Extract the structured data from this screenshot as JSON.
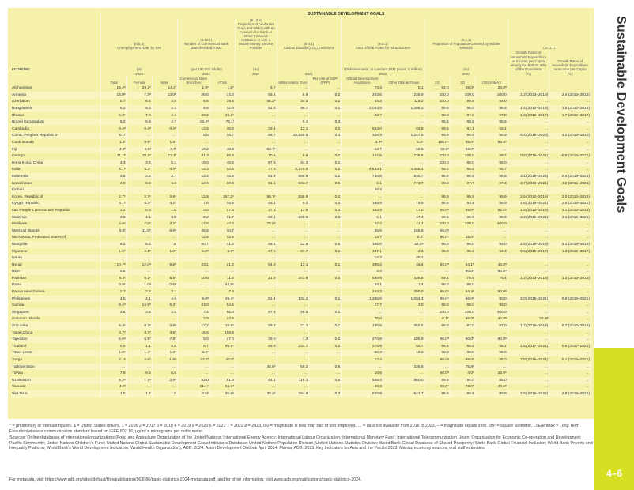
{
  "page": {
    "super_title": "SUSTAINABLE DEVELOPMENT GOALS",
    "side_title": "Sustainable Development Goals",
    "page_number": "4–6"
  },
  "style": {
    "table_bg": "#f5f1a8",
    "band_bg": "#d7df23",
    "text_color": "#333333",
    "header_fontsize": 4.4,
    "body_fontsize": 4.8
  },
  "headers": {
    "economy_label": "ECONOMY",
    "groups": [
      {
        "ref": "(8.5.2)",
        "title": "Unemployment Rate, by Sex",
        "unit": "(%)",
        "year": "2022",
        "sub": [
          "Total",
          "Female",
          "Male"
        ]
      },
      {
        "ref": "(8.10.1)",
        "title": "Number of Commercial Bank Branches and ATMs",
        "unit": "(per 100,000 adults)",
        "year": "2022",
        "sub": [
          "Commercial Bank Branches",
          "ATMs"
        ]
      },
      {
        "ref": "(8.10.2)",
        "title": "Proportion of Adults (15 Years and Older) with an Account at a Bank or Other Financial Institution or with a Mobile Money Service Provider",
        "unit": "(%)",
        "year": "2021",
        "sub": [
          ""
        ]
      },
      {
        "ref": "(9.4.1)",
        "title": "Carbon Dioxide (CO₂) Emissions",
        "unit": "",
        "year": "2021",
        "sub": [
          "Million Metric Tons",
          "Per Unit of GDP (PPP)"
        ]
      },
      {
        "ref": "(9.a.1)",
        "title": "Total Official Flows for Infrastructure",
        "unit": "(Disbursements, at constant 2021 prices, $ million)",
        "year": "2022",
        "sub": [
          "Official Development Assistance",
          "Other Official Flows"
        ]
      },
      {
        "ref": "(9.c.1)",
        "title": "Proportion of Population Covered by Mobile Network",
        "unit": "(%)",
        "year": "2022",
        "sub": [
          "2G",
          "3G",
          "LTE/ WiMAX"
        ]
      },
      {
        "ref": "(10.1.1)",
        "title": "",
        "unit": "",
        "year": "",
        "sub": [
          "Growth Rates of Household Expenditure or Income per Capita among the Bottom 40% of the Population",
          "Growth Rates of Household Expenditure or Income per Capita"
        ]
      }
    ],
    "unit_pct": "(%)",
    "unit_pct2": "(%)"
  },
  "rows": [
    {
      "e": "Afghanistan",
      "c": [
        "15.4ᵃ",
        "29.2ᶜ",
        "14.4ᶠ",
        "1.9ᶜ",
        "1.6ᶜ",
        "9.7",
        "…",
        "…",
        "73.3",
        "0.1",
        "92.0",
        "58.0ᵃ",
        "26.0ᵃ",
        "",
        ""
      ]
    },
    {
      "e": "Armenia",
      "c": [
        "13.0ᵃ",
        "7.3ᵃ",
        "13.0ᵃ",
        "26.0",
        "74.0",
        "55.4",
        "6.9",
        "0.2",
        "202.6",
        "235.9",
        "100.0",
        "100.0",
        "100.0",
        "1.3  (2013–2018)",
        "2.4  (2013–2018)"
      ]
    },
    {
      "e": "Azerbaijan",
      "c": [
        "5.7",
        "6.5",
        "4.8",
        "6.6",
        "39.4",
        "46.3ᵇ",
        "34.0",
        "0.2",
        "64.3",
        "115.2",
        "100.0",
        "99.8",
        "94.0",
        "…",
        "…"
      ]
    },
    {
      "e": "Bangladesh",
      "c": [
        "5.2",
        "8.3",
        "4.3",
        "8.8",
        "12.6",
        "52.8",
        "98.7",
        "0.1",
        "3,083.5",
        "1,298.3",
        "99.6",
        "98.5",
        "98.5",
        "1.4  (2010–2016)",
        "1.5  (2010–2016)"
      ]
    },
    {
      "e": "Bhutan",
      "c": [
        "5.9ᶜ",
        "7.9",
        "4.4",
        "20.2",
        "45.2ᶜ",
        "…",
        "…",
        "…",
        "34.7",
        "…",
        "98.0",
        "97.0",
        "97.0",
        "1.6  (2012–2017)",
        "1.7  (2012–2017)"
      ]
    },
    {
      "e": "Brunei Darussalam",
      "c": [
        "5.2",
        "5.9",
        "4.7",
        "16.2ᵃ",
        "73.1ᶠ",
        "…",
        "9.1",
        "0.3",
        "…",
        "…",
        "98.6",
        "98.6",
        "98.6",
        "…",
        "…"
      ]
    },
    {
      "e": "Cambodia",
      "c": [
        "0.4ᵃ",
        "0.4ᵃ",
        "0.4ᵃ",
        "12.6",
        "38.0",
        "33.4",
        "13.1",
        "0.2",
        "554.0",
        "93.8",
        "99.6",
        "92.1",
        "92.1",
        "…",
        "…"
      ]
    },
    {
      "e": "China, People's Republic of",
      "c": [
        "5.1ᶜ",
        "…",
        "…",
        "8.8",
        "76.7",
        "88.7",
        "10,648.5",
        "0.4",
        "328.3",
        "1,247.9",
        "99.9",
        "99.9",
        "99.9",
        "5.4  (2015–2020)",
        "4.0  (2015–2020)"
      ]
    },
    {
      "e": "Cook Islands",
      "c": [
        "1.3ᶠ",
        "0.9ᶜ",
        "1.6ᶜ",
        "…",
        "…",
        "…",
        "…",
        "…",
        "4.9ᵃ",
        "5.4ᶜ",
        "100.0ᶜ",
        "55.0ᶜ",
        "55.0ᶜ",
        "…",
        "…"
      ]
    },
    {
      "e": "Fiji",
      "c": [
        "4.3ᶠ",
        "5.5ᶠ",
        "3.7ᶠ",
        "10.2",
        "48.8",
        "62.7ᶜ",
        "…",
        "…",
        "14.7",
        "52.5",
        "98.0ᶠ",
        "96.0ᵃ",
        "…",
        "…",
        "…"
      ]
    },
    {
      "e": "Georgia",
      "c": [
        "11.7ᵃ",
        "10.2ᶜ",
        "13.1ᶠ",
        "31.3",
        "99.3",
        "70.5",
        "9.9",
        "0.2",
        "192.5",
        "736.6",
        "100.0",
        "100.0",
        "99.7",
        "0.2  (2016–2021)",
        "–0.9  (2016–2021)"
      ]
    },
    {
      "e": "Hong Kong, China",
      "c": [
        "4.3",
        "3.5",
        "5.1",
        "19.0",
        "49.5",
        "97.8",
        "34.3",
        "0.1",
        "…",
        "…",
        "100.0",
        "99.0",
        "99.0",
        "…",
        "…"
      ]
    },
    {
      "e": "India",
      "c": [
        "4.1ᵃ",
        "3.3ᶜ",
        "4.4ᵃ",
        "14.3",
        "24.6",
        "77.5",
        "2,279.0",
        "0.2",
        "4,634.1",
        "4,068.4",
        "99.2",
        "98.8",
        "98.7",
        "…",
        "…"
      ]
    },
    {
      "e": "Indonesia",
      "c": [
        "3.5",
        "3.2",
        "3.7",
        "12.4",
        "45.8",
        "51.8",
        "556.6",
        "0.2",
        "738.6",
        "935.7",
        "98.8",
        "96.5",
        "96.5",
        "3.1  (2018–2023)",
        "2.3  (2018–2023)"
      ]
    },
    {
      "e": "Kazakhstan",
      "c": [
        "4.9",
        "5.5",
        "4.3",
        "12.4",
        "89.8",
        "81.1",
        "223.7",
        "0.5",
        "5.1",
        "773.7",
        "99.0",
        "97.7",
        "87.3",
        "3.7  (2016–2021)",
        "4.2  (2016–2021)"
      ]
    },
    {
      "e": "Kiribati",
      "c": [
        "…",
        "…",
        "…",
        "…",
        "…",
        "…",
        "…",
        "…",
        "26.4",
        "…",
        "…",
        "…",
        "…",
        "…",
        "…"
      ]
    },
    {
      "e": "Korea, Republic of",
      "c": [
        "2.7ᶜ",
        "2.7ᶜ",
        "2.6ᶜ",
        "12.9",
        "257.2ᶜ",
        "98.7ᶜ",
        "558.6",
        "0.2",
        "…",
        "…",
        "99.9",
        "99.9",
        "99.9",
        "2.5  (2012–2016)",
        "2.3  (2012–2016)"
      ]
    },
    {
      "e": "Kyrgyz Republic",
      "c": [
        "4.1ᶜ",
        "4.3ᶜ",
        "4.1ᶜ",
        "7.6",
        "45.8",
        "45.1",
        "9.2",
        "0.3",
        "166.9",
        "79.9",
        "98.8",
        "93.8",
        "86.9",
        "1.6  (2016–2021)",
        "2.5  (2016–2021)"
      ]
    },
    {
      "e": "Lao People's Democratic Republic",
      "c": [
        "1.2",
        "0.9",
        "1.5",
        "3.0",
        "27.5",
        "37.3",
        "17.9",
        "0.3",
        "163.3",
        "17.0",
        "95.0ᵃ",
        "85.0ᵃ",
        "52.0ᵃ",
        "1.9  (2012–2018)",
        "3.1  (2012–2018)"
      ]
    },
    {
      "e": "Malaysia",
      "c": [
        "3.9",
        "4.1",
        "3.8",
        "8.2",
        "51.7",
        "88.4",
        "225.9",
        "0.3",
        "5.1",
        "47.4",
        "98.6",
        "96.9",
        "96.9",
        "3.2  (2015–2021)",
        "3.1  (2015–2021)"
      ]
    },
    {
      "e": "Maldives",
      "c": [
        "4.6ᶜ",
        "7.0ᶜ",
        "3.1ᶜ",
        "14.6",
        "44.4",
        "79.0ᶜ",
        "…",
        "…",
        "52.7",
        "11.4",
        "100.0",
        "100.0",
        "100.0",
        "…",
        "…"
      ]
    },
    {
      "e": "Marshall Islands",
      "c": [
        "9.8ᶠ",
        "11.5ᵇ",
        "8.9ᵃ",
        "28.5",
        "10.7",
        "…",
        "…",
        "…",
        "26.8",
        "166.8",
        "65.0ᵃ",
        "…",
        "…",
        "…",
        "…"
      ]
    },
    {
      "e": "Micronesia, Federated States of",
      "c": [
        "…",
        "…",
        "…",
        "12.6",
        "12.6",
        "…",
        "…",
        "…",
        "12.7",
        "0.2ᶠ",
        "80.0ᶜ",
        "15.0ᶜ",
        "…",
        "…",
        "…"
      ]
    },
    {
      "e": "Mongolia",
      "c": [
        "6.2",
        "5.4",
        "7.0",
        "60.7",
        "41.2",
        "98.5",
        "22.6",
        "0.6",
        "165.0",
        "82.0ᵃ",
        "99.0",
        "99.0",
        "99.0",
        "2.5  (2016–2018)",
        "3.1  (2016–2018)"
      ]
    },
    {
      "e": "Myanmar",
      "c": [
        "1.5ᵇ",
        "2.1ᶜ",
        "1.0ᵃ",
        "5.6ᵇ",
        "6.9ᵃ",
        "47.8",
        "27.7",
        "0.1",
        "337.1",
        "2.4",
        "96.0",
        "95.4",
        "94.3",
        "9.5  (2015–2017)",
        "1.3  (2015–2017)"
      ]
    },
    {
      "e": "Nauru",
      "c": [
        "…",
        "…",
        "…",
        "…",
        "…",
        "…",
        "…",
        "…",
        "12.2",
        "30.1",
        "…",
        "…",
        "…",
        "…",
        "…"
      ]
    },
    {
      "e": "Nepal",
      "c": [
        "10.7ᵃ",
        "12.0ᵃ",
        "9.8ᵃ",
        "23.1",
        "21.2",
        "54.0",
        "13.1",
        "0.1",
        "386.2",
        "46.4",
        "93.0ᵃ",
        "54.1ᵃ",
        "45.0ᵃ",
        "…",
        "…"
      ]
    },
    {
      "e": "Niue",
      "c": [
        "0.6",
        "…",
        "…",
        "…",
        "…",
        "…",
        "…",
        "…",
        "4.4",
        "…",
        "…",
        "60.0ᵃ",
        "60.0ᵃ",
        "…",
        "…"
      ]
    },
    {
      "e": "Pakistan",
      "c": [
        "6.3ᶠ",
        "9.2ᶜ",
        "5.5ᶜ",
        "10.8",
        "11.2",
        "21.0",
        "201.6",
        "0.2",
        "589.9",
        "436.8",
        "89.4",
        "79.9",
        "76.4",
        "1.3  (2013–2018)",
        "1.3  (2013–2018)"
      ]
    },
    {
      "e": "Palau",
      "c": [
        "0.8ᶜ",
        "1.0ᵃ",
        "0.6ᵃ",
        "…",
        "44.9ᶜ",
        "…",
        "…",
        "…",
        "34.1",
        "1.4",
        "98.0",
        "89.0",
        "…",
        "…",
        "…"
      ]
    },
    {
      "e": "Papua New Guinea",
      "c": [
        "2.7",
        "2.2",
        "3.1",
        "…",
        "7.4",
        "…",
        "…",
        "…",
        "244.3",
        "390.0",
        "89.0ᶜ",
        "64.4ᵃ",
        "50.0ᵃ",
        "…",
        "…"
      ]
    },
    {
      "e": "Philippines",
      "c": [
        "4.5",
        "4.1",
        "4.9",
        "9.0ᵃ",
        "29.4ᶜ",
        "51.4",
        "132.2",
        "0.1",
        "1,395.6",
        "1,094.3",
        "99.0ᶜ",
        "96.0ᵃ",
        "80.0",
        "3.0  (2015–2021)",
        "0.8  (2015–2021)"
      ]
    },
    {
      "e": "Samoa",
      "c": [
        "9.4ᵇ",
        "14.5ᵇ",
        "6.3ᶜ",
        "23.0",
        "54.6",
        "…",
        "…",
        "…",
        "27.7",
        "3.0",
        "99.0",
        "99.0",
        "99.0",
        "…",
        "…"
      ]
    },
    {
      "e": "Singapore",
      "c": [
        "3.6",
        "3.8",
        "3.5",
        "7.4",
        "55.0",
        "97.6",
        "45.5",
        "0.1",
        "…",
        "…",
        "100.0",
        "100.0",
        "100.0",
        "…",
        "…"
      ]
    },
    {
      "e": "Solomon Islands",
      "c": [
        "…",
        "…",
        "…",
        "3.9",
        "13.6",
        "…",
        "…",
        "…",
        "70.0",
        "…",
        "0.1ᶜ",
        "95.0ᵃ",
        "45.0ᵃ",
        "25.0ᵃ",
        "…"
      ]
    },
    {
      "e": "Sri Lanka",
      "c": [
        "5.4ᶜ",
        "8.2ᶜ",
        "3.9ᵃ",
        "17.2",
        "18.9ᶜ",
        "89.3",
        "21.1",
        "0.1",
        "135.8",
        "352.5",
        "99.0",
        "97.0",
        "97.0",
        "1.7  (2016–2019)",
        "0.7  (2016–2019)"
      ]
    },
    {
      "e": "Taipei,China",
      "c": [
        "3.7ᶜ",
        "3.7ᶜ",
        "3.6ᶜ",
        "16.6",
        "159.8",
        "…",
        "…",
        "…",
        "…",
        "…",
        "…",
        "…",
        "…",
        "…",
        "…"
      ]
    },
    {
      "e": "Tajikistan",
      "c": [
        "6.9ᵃ",
        "5.5ᶜ",
        "7.9ᶜ",
        "5.0",
        "27.0",
        "39.0",
        "7.4",
        "0.2",
        "274.8",
        "105.9",
        "90.0ᵃ",
        "90.0ᵃ",
        "80.0ᵃ",
        "…",
        "…"
      ]
    },
    {
      "e": "Thailand",
      "c": [
        "0.9",
        "1.1",
        "0.8",
        "9.7",
        "99.9ᶜ",
        "95.6",
        "234.7",
        "0.2",
        "275.8",
        "50.7",
        "98.6",
        "98.8",
        "98.1",
        "1.5  (2017–2021)",
        "0.6  (2017–2021)"
      ]
    },
    {
      "e": "Timor-Leste",
      "c": [
        "1.5ᶜ",
        "1.4ᶜ",
        "1.6ᶜ",
        "3.4ᶜ",
        "…",
        "…",
        "…",
        "…",
        "60.3",
        "10.2",
        "99.0",
        "99.0",
        "98.0",
        "…",
        "…"
      ]
    },
    {
      "e": "Tonga",
      "c": [
        "2.1ᵃ",
        "2.5ᶜ",
        "1.8ᵃ",
        "33.0ᶠ",
        "40.5ᶠ",
        "…",
        "…",
        "…",
        "13.4",
        "…",
        "99.0ᵃ",
        "99.0ᵃ",
        "96.0",
        "7.8  (2015–2021)",
        "5.1  (2015–2021)"
      ]
    },
    {
      "e": "Turkmenistan",
      "c": [
        "…",
        "…",
        "…",
        "…",
        "…",
        "40.6ᶜ",
        "59.2",
        "0.6",
        "…",
        "336.8",
        "…",
        "75.8ᶜ",
        "…",
        "…",
        "…"
      ]
    },
    {
      "e": "Tuvalu",
      "c": [
        "7.9",
        "9.5",
        "6.8",
        "…",
        "…",
        "…",
        "…",
        "…",
        "10.6",
        "…",
        "80.0ᵃ",
        "4.0ᵃ",
        "25.0ᶜ",
        "…",
        "…"
      ]
    },
    {
      "e": "Uzbekistan",
      "c": [
        "5.3ᵃ",
        "7.7ᵃ",
        "3.9ᵃ",
        "52.0",
        "81.9",
        "44.1",
        "116.1",
        "0.4",
        "548.4",
        "960.0",
        "99.5",
        "94.0",
        "85.0",
        "…",
        "…"
      ]
    },
    {
      "e": "Vanuatu",
      "c": [
        "4.0ᶠ",
        "…",
        "…",
        "21.1ᶜ",
        "56.3ᵃ",
        "…",
        "…",
        "…",
        "48.3",
        "–",
        "98.0ᶜ",
        "70.0ᵃ",
        "40.0ᵃ",
        "…",
        "…"
      ]
    },
    {
      "e": "Viet Nam",
      "c": [
        "1.5",
        "1.4",
        "1.6",
        "3.5ᵇ",
        "25.9ᵇ",
        "30.2ᶜ",
        "284.8",
        "0.3",
        "820.9",
        "641.7",
        "99.8",
        "99.8",
        "99.8",
        "2.6  (2016–2022)",
        "2.8  (2016–2022)"
      ]
    }
  ],
  "footnotes": {
    "line1": "* = preliminary or forecast figures, $ = United States dollars, 1 = 2016  2 = 2017  3 = 2018  4 = 2019  5 = 2020  6 = 2021  7 = 2022  8 = 2023, 0.0 = magnitude is less than half of unit employed, … = data not available from 2016 to 2023, – = magnitude equals zero, km² = square kilometer, LTE/WiMax = Long Term Evolution/wireless communication standard based on IEEE 802.16, µg/m³ = micrograms per cubic meter.",
    "line2": "Sources:   Online databases of international organizations (Food and Agriculture Organization of the United Nations; International Energy Agency; International Labour Organization; International Monetary Fund; International Telecommunication Union; Organisation for Economic Co-operation and Development; Pacific Community; United Nations Children's Fund; United Nations Global Sustainable Development Goals Indicators Database; United Nations Population Division; United Nations Statistics Division; World Bank Global Database of Shared Prosperity; World Bank Global Financial Inclusion; World Bank Poverty and Inequality Platform; World Bank's World Development Indicators; World Health Organization), ADB. 2024. Asian Development Outlook April 2024. Manila; ADB. 2023. Key Indicators for Asia and the Pacific 2023. Manila; economy sources; and staff estimates."
  },
  "meta": "For metadata, visit https://www.adb.org/sites/default/files/publication/963086/basic-statistics-2024-metadata.pdf, and for other information, visit www.adb.org/publications/basic-statistics-2024."
}
